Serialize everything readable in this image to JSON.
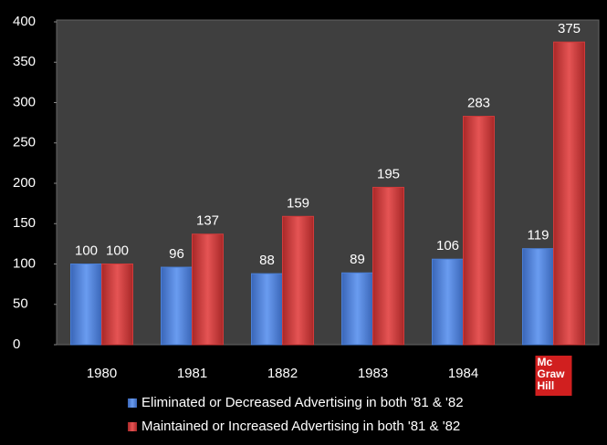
{
  "chart_data": {
    "type": "bar",
    "categories": [
      "1980",
      "1981",
      "1882",
      "1983",
      "1984",
      null
    ],
    "series": [
      {
        "name": "Eliminated or Decreased Advertising in both '81 & '82",
        "color": "#4a7fd6",
        "values": [
          100,
          96,
          88,
          89,
          106,
          119
        ]
      },
      {
        "name": "Maintained or Increased Advertising in both '81 & '82",
        "color": "#d13b3b",
        "values": [
          100,
          137,
          159,
          195,
          283,
          375
        ]
      }
    ],
    "ylim": [
      0,
      400
    ],
    "yticks": [
      0,
      50,
      100,
      150,
      200,
      250,
      300,
      350,
      400
    ],
    "legend": "bottom",
    "logo_text": [
      "Mc",
      "Graw",
      "Hill"
    ]
  }
}
